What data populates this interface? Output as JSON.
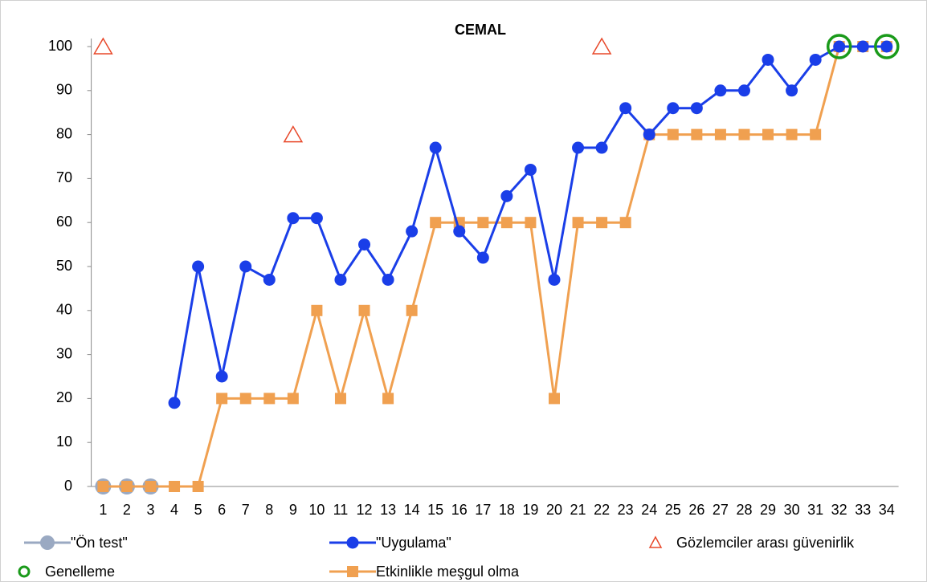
{
  "chart_data": {
    "type": "line",
    "title": "CEMAL",
    "categories": [
      "1",
      "2",
      "3",
      "4",
      "5",
      "6",
      "7",
      "8",
      "9",
      "10",
      "11",
      "12",
      "13",
      "14",
      "15",
      "16",
      "17",
      "18",
      "19",
      "20",
      "21",
      "22",
      "23",
      "24",
      "25",
      "26",
      "27",
      "28",
      "29",
      "30",
      "31",
      "32",
      "33",
      "34"
    ],
    "ylim": [
      0,
      100
    ],
    "yticks": [
      0,
      10,
      20,
      30,
      40,
      50,
      60,
      70,
      80,
      90,
      100
    ],
    "grid": false,
    "series": [
      {
        "name": "\"Ön test\"",
        "color": "#9aa9c2",
        "marker": "circle",
        "line": true,
        "values": [
          0,
          0,
          0,
          null,
          null,
          null,
          null,
          null,
          null,
          null,
          null,
          null,
          null,
          null,
          null,
          null,
          null,
          null,
          null,
          null,
          null,
          null,
          null,
          null,
          null,
          null,
          null,
          null,
          null,
          null,
          null,
          null,
          null,
          null
        ]
      },
      {
        "name": "\"Uygulama\"",
        "color": "#1a3ee8",
        "marker": "circle",
        "line": true,
        "values": [
          null,
          null,
          null,
          19,
          50,
          25,
          50,
          47,
          61,
          61,
          47,
          55,
          47,
          58,
          77,
          58,
          52,
          66,
          72,
          47,
          77,
          77,
          86,
          80,
          86,
          86,
          90,
          90,
          97,
          90,
          97,
          100,
          100,
          100
        ]
      },
      {
        "name": "Gözlemciler arası güvenirlik",
        "color": "#e8482a",
        "marker": "triangle",
        "line": false,
        "values": [
          100,
          null,
          null,
          null,
          null,
          null,
          null,
          null,
          80,
          null,
          null,
          null,
          null,
          null,
          null,
          null,
          null,
          null,
          null,
          null,
          null,
          100,
          null,
          null,
          null,
          null,
          null,
          null,
          null,
          null,
          null,
          null,
          null,
          null
        ]
      },
      {
        "name": "Genelleme",
        "color": "#1a9a1a",
        "marker": "ring",
        "line": false,
        "values": [
          null,
          null,
          null,
          null,
          null,
          null,
          null,
          null,
          null,
          null,
          null,
          null,
          null,
          null,
          null,
          null,
          null,
          null,
          null,
          null,
          null,
          null,
          null,
          null,
          null,
          null,
          null,
          null,
          null,
          null,
          null,
          100,
          null,
          100
        ]
      },
      {
        "name": "Etkinlikle meşgul olma",
        "color": "#f0a050",
        "marker": "square",
        "line": true,
        "values": [
          0,
          0,
          0,
          0,
          0,
          20,
          20,
          20,
          20,
          40,
          20,
          40,
          20,
          40,
          60,
          60,
          60,
          60,
          60,
          20,
          60,
          60,
          60,
          80,
          80,
          80,
          80,
          80,
          80,
          80,
          80,
          100,
          100,
          100
        ]
      }
    ]
  }
}
